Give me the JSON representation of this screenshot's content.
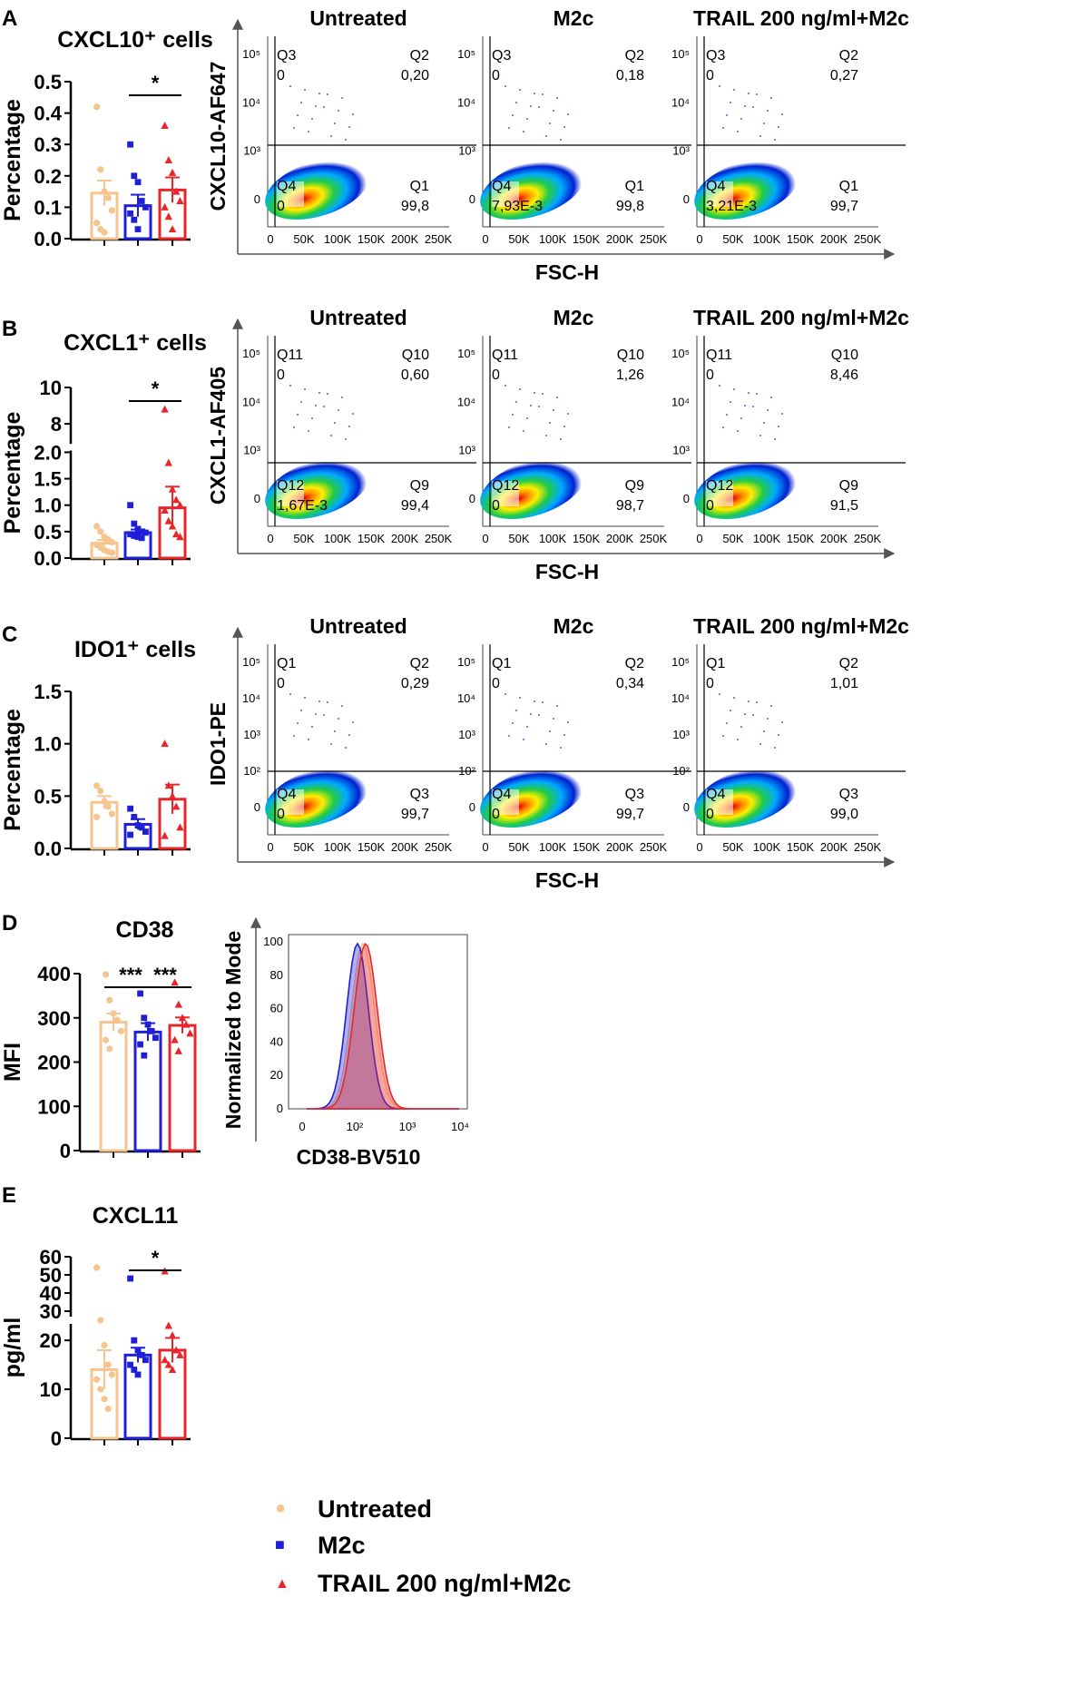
{
  "panels": [
    {
      "id": "A",
      "bar_chart": {
        "type": "bar",
        "title": "CXCL10⁺ cells",
        "ylabel": "Percentage",
        "ylim": [
          0,
          0.5
        ],
        "yticks": [
          "0.0",
          "0.1",
          "0.2",
          "0.3",
          "0.4",
          "0.5"
        ],
        "categories": [
          "Untreated",
          "M2c",
          "TRAIL 200 ng/ml+M2c"
        ],
        "means": [
          0.145,
          0.105,
          0.155
        ],
        "sem": [
          0.04,
          0.035,
          0.04
        ],
        "points": [
          [
            0.42,
            0.22,
            0.15,
            0.13,
            0.09,
            0.05,
            0.03,
            0.02
          ],
          [
            0.3,
            0.2,
            0.18,
            0.12,
            0.1,
            0.08,
            0.06,
            0.03
          ],
          [
            0.36,
            0.25,
            0.21,
            0.15,
            0.12,
            0.1,
            0.07,
            0.03
          ]
        ],
        "significance": [
          {
            "pair": [
              1,
              2
            ],
            "label": "*"
          }
        ]
      },
      "facs": {
        "ylabel": "CXCL10-AF647",
        "xlabel": "FSC-H",
        "titles": [
          "Untreated",
          "M2c",
          "TRAIL 200 ng/ml+M2c"
        ],
        "xticks": [
          "0",
          "50K",
          "100K",
          "150K",
          "200K",
          "250K"
        ],
        "yticks": [
          "0",
          "10³",
          "10⁴",
          "10⁵"
        ],
        "quadrants": [
          {
            "ul": "Q3",
            "ul_val": "0",
            "ur": "Q2",
            "ur_val": "0,20",
            "ll": "Q4",
            "ll_val": "0",
            "lr": "Q1",
            "lr_val": "99,8"
          },
          {
            "ul": "Q3",
            "ul_val": "0",
            "ur": "Q2",
            "ur_val": "0,18",
            "ll": "Q4",
            "ll_val": "7,93E-3",
            "lr": "Q1",
            "lr_val": "99,8"
          },
          {
            "ul": "Q3",
            "ul_val": "0",
            "ur": "Q2",
            "ur_val": "0,27",
            "ll": "Q4",
            "ll_val": "3,21E-3",
            "lr": "Q1",
            "lr_val": "99,7"
          }
        ]
      }
    },
    {
      "id": "B",
      "bar_chart": {
        "type": "bar",
        "title": "CXCL1⁺ cells",
        "ylabel": "Percentage",
        "ylim": [
          0,
          10
        ],
        "axis_break": [
          2,
          7
        ],
        "yticks": [
          "0.0",
          "0.5",
          "1.0",
          "1.5",
          "2.0",
          "8",
          "10"
        ],
        "categories": [
          "Untreated",
          "M2c",
          "TRAIL 200 ng/ml+M2c"
        ],
        "means": [
          0.28,
          0.48,
          0.95
        ],
        "sem": [
          0.06,
          0.06,
          0.4
        ],
        "points": [
          [
            0.6,
            0.5,
            0.4,
            0.35,
            0.3,
            0.25,
            0.2,
            0.15,
            0.12,
            0.1
          ],
          [
            1.0,
            0.65,
            0.55,
            0.5,
            0.48,
            0.45,
            0.42,
            0.4,
            0.38
          ],
          [
            8.8,
            1.8,
            1.3,
            1.1,
            1.0,
            0.9,
            0.7,
            0.6,
            0.45,
            0.4
          ]
        ],
        "significance": [
          {
            "pair": [
              1,
              2
            ],
            "label": "*"
          }
        ]
      },
      "facs": {
        "ylabel": "CXCL1-AF405",
        "xlabel": "FSC-H",
        "titles": [
          "Untreated",
          "M2c",
          "TRAIL 200 ng/ml+M2c"
        ],
        "xticks": [
          "0",
          "50K",
          "100K",
          "150K",
          "200K",
          "250K"
        ],
        "yticks": [
          "0",
          "10³",
          "10⁴",
          "10⁵"
        ],
        "quadrants": [
          {
            "ul": "Q11",
            "ul_val": "0",
            "ur": "Q10",
            "ur_val": "0,60",
            "ll": "Q12",
            "ll_val": "1,67E-3",
            "lr": "Q9",
            "lr_val": "99,4"
          },
          {
            "ul": "Q11",
            "ul_val": "0",
            "ur": "Q10",
            "ur_val": "1,26",
            "ll": "Q12",
            "ll_val": "0",
            "lr": "Q9",
            "lr_val": "98,7"
          },
          {
            "ul": "Q11",
            "ul_val": "0",
            "ur": "Q10",
            "ur_val": "8,46",
            "ll": "Q12",
            "ll_val": "0",
            "lr": "Q9",
            "lr_val": "91,5"
          }
        ]
      }
    },
    {
      "id": "C",
      "bar_chart": {
        "type": "bar",
        "title": "IDO1⁺ cells",
        "ylabel": "Percentage",
        "ylim": [
          0,
          1.5
        ],
        "yticks": [
          "0.0",
          "0.5",
          "1.0",
          "1.5"
        ],
        "categories": [
          "Untreated",
          "M2c",
          "TRAIL 200 ng/ml+M2c"
        ],
        "means": [
          0.44,
          0.23,
          0.47
        ],
        "sem": [
          0.06,
          0.05,
          0.14
        ],
        "points": [
          [
            0.6,
            0.55,
            0.45,
            0.4,
            0.33,
            0.3
          ],
          [
            0.38,
            0.3,
            0.22,
            0.2,
            0.16,
            0.13
          ],
          [
            1.0,
            0.6,
            0.5,
            0.4,
            0.2,
            0.12
          ]
        ],
        "significance": []
      },
      "facs": {
        "ylabel": "IDO1-PE",
        "xlabel": "FSC-H",
        "titles": [
          "Untreated",
          "M2c",
          "TRAIL 200 ng/ml+M2c"
        ],
        "xticks": [
          "0",
          "50K",
          "100K",
          "150K",
          "200K",
          "250K"
        ],
        "yticks": [
          "0",
          "10²",
          "10³",
          "10⁴",
          "10⁵"
        ],
        "quadrants": [
          {
            "ul": "Q1",
            "ul_val": "0",
            "ur": "Q2",
            "ur_val": "0,29",
            "ll": "Q4",
            "ll_val": "0",
            "lr": "Q3",
            "lr_val": "99,7"
          },
          {
            "ul": "Q1",
            "ul_val": "0",
            "ur": "Q2",
            "ur_val": "0,34",
            "ll": "Q4",
            "ll_val": "0",
            "lr": "Q3",
            "lr_val": "99,7"
          },
          {
            "ul": "Q1",
            "ul_val": "0",
            "ur": "Q2",
            "ur_val": "1,01",
            "ll": "Q4",
            "ll_val": "0",
            "lr": "Q3",
            "lr_val": "99,0"
          }
        ]
      }
    },
    {
      "id": "D",
      "bar_chart": {
        "type": "bar",
        "title": "CD38",
        "ylabel": "MFI",
        "ylim": [
          0,
          400
        ],
        "yticks": [
          "0",
          "100",
          "200",
          "300",
          "400"
        ],
        "categories": [
          "Untreated",
          "M2c",
          "TRAIL 200 ng/ml+M2c"
        ],
        "means": [
          290,
          268,
          283
        ],
        "sem": [
          20,
          20,
          18
        ],
        "points": [
          [
            398,
            340,
            310,
            295,
            270,
            250,
            230
          ],
          [
            355,
            300,
            285,
            270,
            255,
            240,
            215
          ],
          [
            380,
            330,
            300,
            285,
            265,
            250,
            225
          ]
        ],
        "significance": [
          {
            "pair": [
              0,
              1
            ],
            "label": "***"
          },
          {
            "pair": [
              1,
              2
            ],
            "label": "***"
          }
        ]
      },
      "histogram": {
        "type": "area",
        "ylabel": "Normalized to Mode",
        "xlabel": "CD38-BV510",
        "yticks": [
          "0",
          "20",
          "40",
          "60",
          "80",
          "100"
        ],
        "xticks": [
          "0",
          "10²",
          "10³",
          "10⁴"
        ],
        "series_colors": [
          "#f5c48f",
          "#1f1fd6",
          "#e8262a"
        ]
      }
    },
    {
      "id": "E",
      "bar_chart": {
        "type": "bar",
        "title": "CXCL11",
        "ylabel": "pg/ml",
        "ylim": [
          0,
          60
        ],
        "axis_break": [
          23,
          28
        ],
        "yticks": [
          "0",
          "10",
          "20",
          "30",
          "40",
          "50",
          "60"
        ],
        "categories": [
          "Untreated",
          "M2c",
          "TRAIL 200 ng/ml+M2c"
        ],
        "means": [
          14,
          17,
          18
        ],
        "sem": [
          4,
          1.5,
          2.5
        ],
        "points": [
          [
            54,
            25,
            19,
            15,
            13,
            12,
            10,
            8,
            6
          ],
          [
            48,
            20,
            18,
            17,
            16,
            15,
            14,
            13
          ],
          [
            52,
            23,
            21,
            18,
            17,
            16,
            15,
            14
          ]
        ],
        "significance": [
          {
            "pair": [
              1,
              2
            ],
            "label": "*"
          }
        ]
      }
    }
  ],
  "legend": [
    {
      "label": "Untreated",
      "marker": "●",
      "color": "#f5c48f"
    },
    {
      "label": "M2c",
      "marker": "■",
      "color": "#1f1fd6"
    },
    {
      "label": "TRAIL 200 ng/ml+M2c",
      "marker": "▲",
      "color": "#e8262a"
    }
  ],
  "colors": {
    "untreated": "#f5c48f",
    "m2c": "#1f1fd6",
    "trail": "#e8262a"
  }
}
